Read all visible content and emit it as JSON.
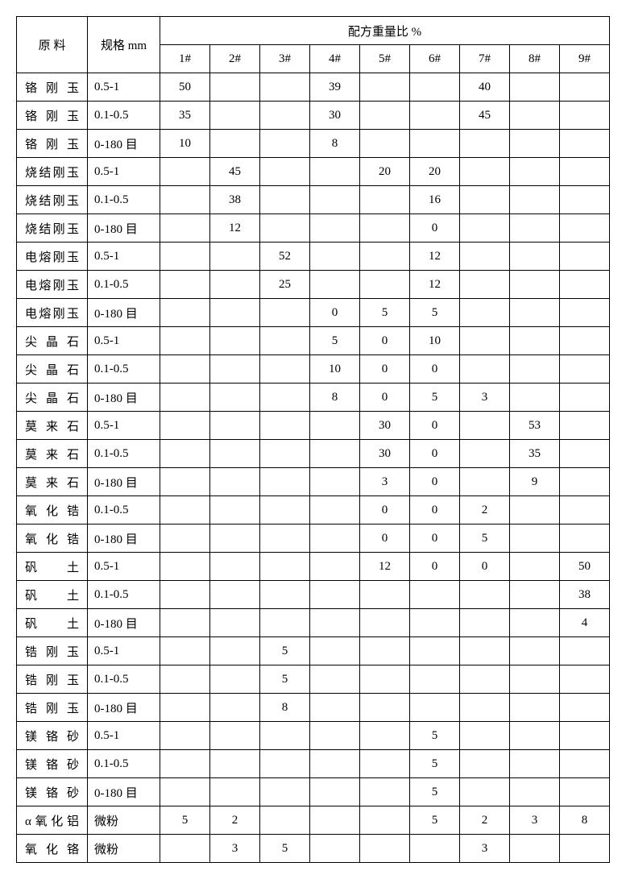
{
  "header": {
    "col1": "原 料",
    "col2": "规格 mm",
    "group": "配方重量比 %",
    "subs": [
      "1#",
      "2#",
      "3#",
      "4#",
      "5#",
      "6#",
      "7#",
      "8#",
      "9#"
    ]
  },
  "rows": [
    {
      "label": "铬刚玉",
      "spec": "0.5-1",
      "v": [
        "50",
        "",
        "",
        "39",
        "",
        "",
        "40",
        "",
        ""
      ]
    },
    {
      "label": "铬刚玉",
      "spec": "0.1-0.5",
      "v": [
        "35",
        "",
        "",
        "30",
        "",
        "",
        "45",
        "",
        ""
      ]
    },
    {
      "label": "铬刚玉",
      "spec": "0-180 目",
      "v": [
        "10",
        "",
        "",
        "8",
        "",
        "",
        "",
        "",
        ""
      ]
    },
    {
      "label": "烧结刚玉",
      "spec": "0.5-1",
      "v": [
        "",
        "45",
        "",
        "",
        "20",
        "20",
        "",
        "",
        ""
      ]
    },
    {
      "label": "烧结刚玉",
      "spec": "0.1-0.5",
      "v": [
        "",
        "38",
        "",
        "",
        "",
        "16",
        "",
        "",
        ""
      ]
    },
    {
      "label": "烧结刚玉",
      "spec": "0-180 目",
      "v": [
        "",
        "12",
        "",
        "",
        "",
        "0",
        "",
        "",
        ""
      ]
    },
    {
      "label": "电熔刚玉",
      "spec": "0.5-1",
      "v": [
        "",
        "",
        "52",
        "",
        "",
        "12",
        "",
        "",
        ""
      ]
    },
    {
      "label": "电熔刚玉",
      "spec": "0.1-0.5",
      "v": [
        "",
        "",
        "25",
        "",
        "",
        "12",
        "",
        "",
        ""
      ]
    },
    {
      "label": "电熔刚玉",
      "spec": "0-180 目",
      "v": [
        "",
        "",
        "",
        "0",
        "5",
        "5",
        "",
        "",
        ""
      ]
    },
    {
      "label": "尖晶石",
      "spec": "0.5-1",
      "v": [
        "",
        "",
        "",
        "5",
        "0",
        "10",
        "",
        "",
        ""
      ]
    },
    {
      "label": "尖晶石",
      "spec": "0.1-0.5",
      "v": [
        "",
        "",
        "",
        "10",
        "0",
        "0",
        "",
        "",
        ""
      ]
    },
    {
      "label": "尖晶石",
      "spec": "0-180 目",
      "v": [
        "",
        "",
        "",
        "8",
        "0",
        "5",
        "3",
        "",
        ""
      ]
    },
    {
      "label": "莫来石",
      "spec": "0.5-1",
      "v": [
        "",
        "",
        "",
        "",
        "30",
        "0",
        "",
        "53",
        ""
      ]
    },
    {
      "label": "莫来石",
      "spec": "0.1-0.5",
      "v": [
        "",
        "",
        "",
        "",
        "30",
        "0",
        "",
        "35",
        ""
      ]
    },
    {
      "label": "莫来石",
      "spec": "0-180 目",
      "v": [
        "",
        "",
        "",
        "",
        "3",
        "0",
        "",
        "9",
        ""
      ]
    },
    {
      "label": "氧化锆",
      "spec": "0.1-0.5",
      "v": [
        "",
        "",
        "",
        "",
        "0",
        "0",
        "2",
        "",
        ""
      ]
    },
    {
      "label": "氧化锆",
      "spec": "0-180 目",
      "v": [
        "",
        "",
        "",
        "",
        "0",
        "0",
        "5",
        "",
        ""
      ]
    },
    {
      "label": "矾土",
      "spec": "0.5-1",
      "v": [
        "",
        "",
        "",
        "",
        "12",
        "0",
        "0",
        "",
        "50"
      ]
    },
    {
      "label": "矾土",
      "spec": "0.1-0.5",
      "v": [
        "",
        "",
        "",
        "",
        "",
        "",
        "",
        "",
        "38"
      ]
    },
    {
      "label": "矾土",
      "spec": "0-180 目",
      "v": [
        "",
        "",
        "",
        "",
        "",
        "",
        "",
        "",
        "4"
      ]
    },
    {
      "label": "锆刚玉",
      "spec": "0.5-1",
      "v": [
        "",
        "",
        "5",
        "",
        "",
        "",
        "",
        "",
        ""
      ]
    },
    {
      "label": "锆刚玉",
      "spec": "0.1-0.5",
      "v": [
        "",
        "",
        "5",
        "",
        "",
        "",
        "",
        "",
        ""
      ]
    },
    {
      "label": "锆刚玉",
      "spec": "0-180 目",
      "v": [
        "",
        "",
        "8",
        "",
        "",
        "",
        "",
        "",
        ""
      ]
    },
    {
      "label": "镁铬砂",
      "spec": "0.5-1",
      "v": [
        "",
        "",
        "",
        "",
        "",
        "5",
        "",
        "",
        ""
      ]
    },
    {
      "label": "镁铬砂",
      "spec": "0.1-0.5",
      "v": [
        "",
        "",
        "",
        "",
        "",
        "5",
        "",
        "",
        ""
      ]
    },
    {
      "label": "镁铬砂",
      "spec": "0-180 目",
      "v": [
        "",
        "",
        "",
        "",
        "",
        "5",
        "",
        "",
        ""
      ]
    },
    {
      "label": "α氧化铝",
      "spec": "微粉",
      "v": [
        "5",
        "2",
        "",
        "",
        "",
        "5",
        "2",
        "3",
        "8"
      ]
    },
    {
      "label": "氧化铬",
      "spec": "微粉",
      "v": [
        "",
        "3",
        "5",
        "",
        "",
        "",
        "3",
        "",
        ""
      ]
    }
  ]
}
